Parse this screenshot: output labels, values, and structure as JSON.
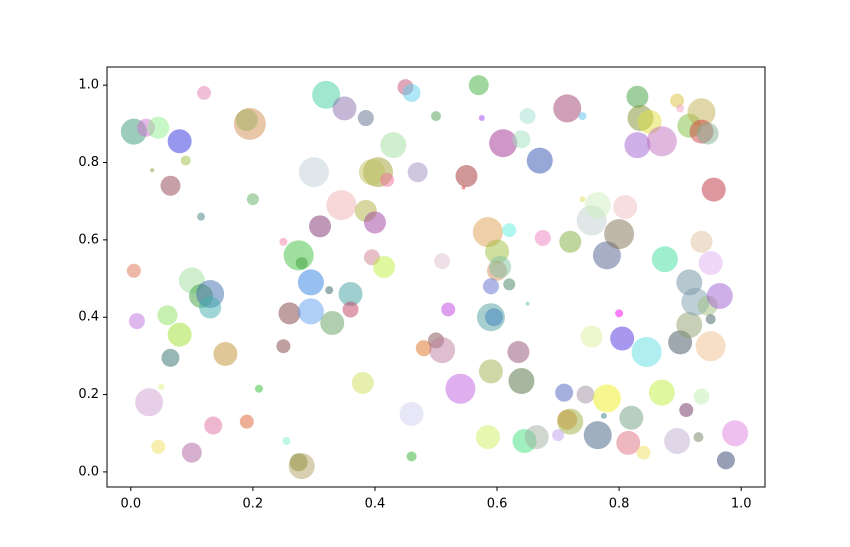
{
  "chart_data": {
    "type": "scatter",
    "xlim": [
      -0.039,
      1.039
    ],
    "ylim": [
      -0.039,
      1.047
    ],
    "xticks": [
      {
        "value": 0,
        "label": "0.0"
      },
      0.2,
      0.4,
      0.6,
      0.8,
      {
        "value": 1,
        "label": "1.0"
      }
    ],
    "yticks": [
      {
        "value": 0,
        "label": "0.0"
      },
      0.2,
      0.4,
      0.6,
      0.8,
      {
        "value": 1,
        "label": "1.0"
      }
    ],
    "alpha": 0.5,
    "x": [
      0.005,
      0.025,
      0.045,
      0.08,
      0.12,
      0.19,
      0.195,
      0.065,
      0.035,
      0.09,
      0.115,
      0.2,
      0.005,
      0.01,
      0.06,
      0.1,
      0.115,
      0.13,
      0.13,
      0.08,
      0.065,
      0.155,
      0.03,
      0.05,
      0.045,
      0.1,
      0.135,
      0.19,
      0.21,
      0.255,
      0.275,
      0.28,
      0.25,
      0.26,
      0.275,
      0.28,
      0.25,
      0.3,
      0.31,
      0.295,
      0.295,
      0.33,
      0.325,
      0.36,
      0.36,
      0.32,
      0.35,
      0.385,
      0.345,
      0.385,
      0.4,
      0.405,
      0.395,
      0.42,
      0.43,
      0.45,
      0.46,
      0.47,
      0.5,
      0.395,
      0.415,
      0.38,
      0.46,
      0.46,
      0.48,
      0.5,
      0.51,
      0.52,
      0.51,
      0.54,
      0.55,
      0.545,
      0.57,
      0.575,
      0.585,
      0.6,
      0.6,
      0.605,
      0.59,
      0.59,
      0.595,
      0.59,
      0.585,
      0.61,
      0.62,
      0.62,
      0.64,
      0.65,
      0.65,
      0.635,
      0.64,
      0.645,
      0.665,
      0.67,
      0.675,
      0.715,
      0.74,
      0.72,
      0.74,
      0.755,
      0.765,
      0.78,
      0.8,
      0.81,
      0.755,
      0.8,
      0.805,
      0.845,
      0.715,
      0.72,
      0.71,
      0.745,
      0.78,
      0.775,
      0.765,
      0.7,
      0.82,
      0.815,
      0.84,
      0.895,
      0.87,
      0.9,
      0.91,
      0.93,
      0.935,
      0.95,
      0.975,
      0.99,
      0.875,
      0.915,
      0.915,
      0.925,
      0.945,
      0.95,
      0.965,
      0.95,
      0.935,
      0.955,
      0.83,
      0.835,
      0.85,
      0.83,
      0.87,
      0.895,
      0.9,
      0.915,
      0.935,
      0.935,
      0.945
    ],
    "y": [
      0.88,
      0.89,
      0.89,
      0.855,
      0.98,
      0.91,
      0.9,
      0.74,
      0.78,
      0.805,
      0.66,
      0.705,
      0.52,
      0.39,
      0.405,
      0.495,
      0.455,
      0.46,
      0.425,
      0.355,
      0.295,
      0.305,
      0.18,
      0.22,
      0.065,
      0.05,
      0.12,
      0.13,
      0.215,
      0.08,
      0.025,
      0.015,
      0.325,
      0.41,
      0.56,
      0.54,
      0.595,
      0.775,
      0.635,
      0.49,
      0.415,
      0.385,
      0.47,
      0.46,
      0.42,
      0.975,
      0.94,
      0.915,
      0.69,
      0.675,
      0.645,
      0.775,
      0.775,
      0.755,
      0.845,
      0.995,
      0.98,
      0.775,
      0.92,
      0.555,
      0.53,
      0.23,
      0.15,
      0.04,
      0.32,
      0.34,
      0.315,
      0.42,
      0.545,
      0.215,
      0.765,
      0.735,
      1.0,
      0.915,
      0.62,
      0.57,
      0.52,
      0.53,
      0.48,
      0.4,
      0.4,
      0.26,
      0.09,
      0.85,
      0.625,
      0.485,
      0.86,
      0.92,
      0.435,
      0.31,
      0.235,
      0.08,
      0.09,
      0.805,
      0.605,
      0.94,
      0.92,
      0.595,
      0.705,
      0.65,
      0.69,
      0.56,
      0.615,
      0.685,
      0.35,
      0.41,
      0.345,
      0.31,
      0.135,
      0.13,
      0.205,
      0.2,
      0.19,
      0.145,
      0.095,
      0.095,
      0.14,
      0.075,
      0.05,
      0.08,
      0.205,
      0.335,
      0.16,
      0.09,
      0.195,
      0.325,
      0.03,
      0.1,
      0.55,
      0.49,
      0.38,
      0.44,
      0.43,
      0.395,
      0.455,
      0.54,
      0.595,
      0.73,
      0.97,
      0.915,
      0.905,
      0.845,
      0.855,
      0.96,
      0.94,
      0.895,
      0.93,
      0.88,
      0.875
    ],
    "sizes": [
      13,
      9,
      11,
      12,
      7,
      11,
      16,
      10,
      2,
      5,
      4,
      6,
      7,
      8,
      10,
      13,
      12,
      14,
      11,
      12,
      9,
      12,
      14,
      3,
      7,
      10,
      9,
      7,
      4,
      4,
      9,
      13,
      7,
      11,
      15,
      6,
      4,
      15,
      11,
      13,
      13,
      12,
      4,
      12,
      8,
      14,
      12,
      8,
      15,
      11,
      11,
      15,
      13,
      7,
      13,
      8,
      9,
      10,
      5,
      8,
      11,
      11,
      12,
      5,
      8,
      8,
      13,
      7,
      8,
      15,
      11,
      2,
      10,
      3,
      15,
      12,
      10,
      11,
      8,
      14,
      9,
      12,
      12,
      14,
      7,
      6,
      9,
      8,
      2,
      11,
      13,
      12,
      12,
      13,
      8,
      14,
      4,
      11,
      3,
      15,
      13,
      14,
      15,
      12,
      11,
      4,
      12,
      15,
      10,
      13,
      9,
      9,
      14,
      3,
      14,
      6,
      12,
      12,
      7,
      13,
      13,
      12,
      7,
      5,
      8,
      15,
      9,
      13,
      13,
      13,
      13,
      14,
      10,
      5,
      13,
      12,
      11,
      12,
      11,
      13,
      12,
      13,
      15,
      7,
      4,
      12,
      14,
      12,
      11
    ],
    "colors": [
      "#3a9a7a",
      "#d070d0",
      "#90ee90",
      "#3030e0",
      "#e080b0",
      "#70d070",
      "#d09050",
      "#904050",
      "#909030",
      "#a0c040",
      "#408080",
      "#60b060",
      "#e07050",
      "#c070e0",
      "#90e060",
      "#a0e0a0",
      "#40a040",
      "#4070b0",
      "#40b0b0",
      "#a0e030",
      "#307070",
      "#c09030",
      "#d0a0d0",
      "#e0f080",
      "#f0e060",
      "#b060a0",
      "#e070a0",
      "#e06030",
      "#30c030",
      "#80f0d0",
      "#708020",
      "#b0a060",
      "#804040",
      "#804040",
      "#40c040",
      "#40a040",
      "#f080a0",
      "#c0d0d8",
      "#803070",
      "#3080e0",
      "#60a0f0",
      "#60a060",
      "#306060",
      "#40a0a0",
      "#c04060",
      "#40d0a0",
      "#9070b0",
      "#607090",
      "#f0b0b0",
      "#b0b040",
      "#a040a0",
      "#a0a030",
      "#c0c060",
      "#f070a0",
      "#a0e0a0",
      "#c05070",
      "#60d0f0",
      "#a090c0",
      "#50a050",
      "#d08090",
      "#c0f040",
      "#d0e060",
      "#d0d0f0",
      "#30b030",
      "#e07020",
      "#805050",
      "#c080a0",
      "#c040e0",
      "#e0c0d0",
      "#c060e0",
      "#a03030",
      "#e04040",
      "#40b040",
      "#a040f0",
      "#e0a050",
      "#a0c040",
      "#d09060",
      "#80c0a0",
      "#6070d0",
      "#50a0a0",
      "#4080c0",
      "#a0b050",
      "#d0f060",
      "#a03090",
      "#60f0e0",
      "#408060",
      "#a0e0c0",
      "#a0e0d0",
      "#60c0a0",
      "#905070",
      "#507040",
      "#40e080",
      "#a0b0a0",
      "#3050b0",
      "#f080c0",
      "#a04070",
      "#60c0f0",
      "#80b040",
      "#e0e060",
      "#c0d0d0",
      "#d0f0c0",
      "#506090",
      "#807050",
      "#f0c0c0",
      "#e0f0a0",
      "#f000f0",
      "#5030e0",
      "#60e0e0",
      "#e08030",
      "#a0b040",
      "#5060c0",
      "#a090a0",
      "#f0f020",
      "#308080",
      "#406080",
      "#c0a0f0",
      "#70a080",
      "#e07080",
      "#f0e060",
      "#c0b0d0",
      "#c0f040",
      "#405060",
      "#703060",
      "#708060",
      "#c0f0b0",
      "#f0c090",
      "#304070",
      "#e080e0",
      "#40e0a0",
      "#7090a0",
      "#90a070",
      "#80a0b0",
      "#a0c080",
      "#406060",
      "#a060d0",
      "#e0b0f0",
      "#e0c0a0",
      "#c03040",
      "#40a040",
      "#809030",
      "#e0e040",
      "#a060d0",
      "#c070c0",
      "#e0c040",
      "#f0a0c0",
      "#80c040",
      "#c0b050",
      "#d04040",
      "#80b090"
    ]
  }
}
